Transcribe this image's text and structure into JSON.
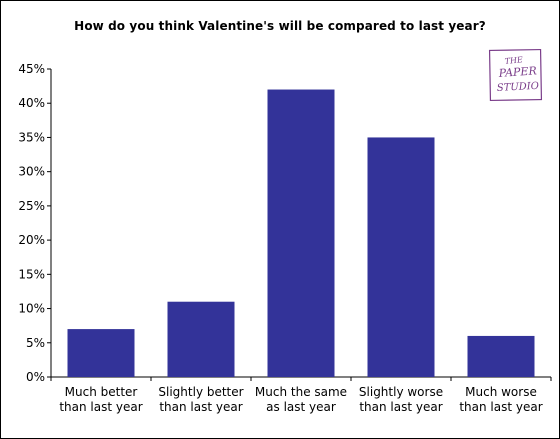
{
  "chart_data": {
    "type": "bar",
    "title": "How do you think Valentine's will be compared to last year?",
    "categories": [
      [
        "Much better",
        "than last year"
      ],
      [
        "Slightly better",
        "than last year"
      ],
      [
        "Much the same",
        "as last year"
      ],
      [
        "Slightly worse",
        "than last year"
      ],
      [
        "Much worse",
        "than last year"
      ]
    ],
    "values": [
      7,
      11,
      42,
      35,
      6
    ],
    "ylim": [
      0,
      45
    ],
    "yticks": [
      0,
      5,
      10,
      15,
      20,
      25,
      30,
      35,
      40,
      45
    ],
    "ytick_labels": [
      "0%",
      "5%",
      "10%",
      "15%",
      "20%",
      "25%",
      "30%",
      "35%",
      "40%",
      "45%"
    ],
    "xlabel": "",
    "ylabel": "",
    "grid": false,
    "legend": "none",
    "colors": {
      "bar": "#333399",
      "axis": "#000000",
      "text": "#000000"
    }
  },
  "logo": {
    "text": "The Paper Studio",
    "color": "#7a3d8a"
  }
}
